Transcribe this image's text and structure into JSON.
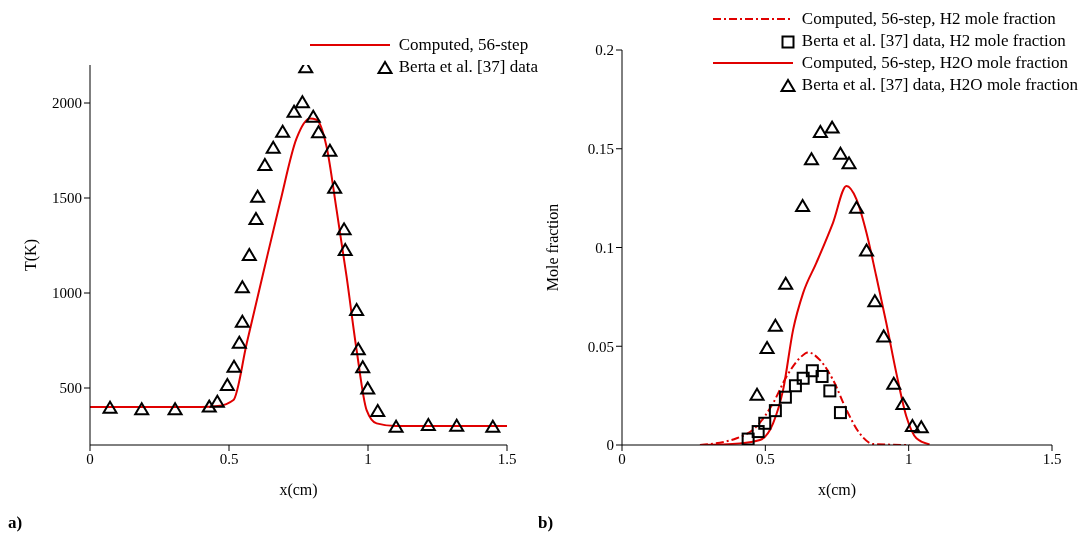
{
  "chart_data": [
    {
      "type": "line",
      "xlabel": "x(cm)",
      "ylabel": "T(K)",
      "xlim": [
        0,
        1.5
      ],
      "xticks": [
        0,
        0.5,
        1,
        1.5
      ],
      "ylim": [
        200,
        2200
      ],
      "yticks": [
        500,
        1000,
        1500,
        2000
      ],
      "grid": false,
      "legend": "top right",
      "annotations": [
        "a)"
      ],
      "series": [
        {
          "name": "Computed, 56-step",
          "color": "#e00000",
          "marker": "none",
          "line_style": "solid",
          "x": [
            0,
            0.2,
            0.4,
            0.46,
            0.516,
            0.564,
            0.623,
            0.683,
            0.743,
            0.791,
            0.815,
            0.851,
            0.887,
            0.923,
            0.959,
            0.995,
            1.031,
            1.1,
            1.3,
            1.5
          ],
          "values": [
            400,
            400,
            400,
            405,
            437,
            737,
            1104,
            1472,
            1814,
            1919,
            1912,
            1770,
            1437,
            1086,
            700,
            384,
            314,
            300,
            300,
            300
          ]
        },
        {
          "name": "Berta et al. [37] data",
          "type": "scatter",
          "color": "#000000",
          "marker": "triangle",
          "x": [
            0.072,
            0.186,
            0.306,
            0.429,
            0.458,
            0.494,
            0.518,
            0.537,
            0.548,
            0.548,
            0.573,
            0.597,
            0.603,
            0.629,
            0.659,
            0.693,
            0.734,
            0.764,
            0.776,
            0.803,
            0.822,
            0.863,
            0.88,
            0.914,
            0.918,
            0.959,
            0.965,
            0.981,
            0.999,
            1.035,
            1.101,
            1.217,
            1.319,
            1.449
          ],
          "values": [
            396,
            388,
            388,
            402,
            428,
            516,
            612,
            738,
            849,
            1030,
            1200,
            1389,
            1507,
            1674,
            1765,
            1849,
            1954,
            2004,
            2188,
            1928,
            1846,
            1749,
            1554,
            1335,
            1226,
            911,
            704,
            609,
            498,
            379,
            296,
            305,
            301,
            296
          ]
        }
      ]
    },
    {
      "type": "line",
      "xlabel": "x(cm)",
      "ylabel": "Mole fraction",
      "xlim": [
        0,
        1.5
      ],
      "xticks": [
        0,
        0.5,
        1,
        1.5
      ],
      "ylim": [
        0,
        0.2
      ],
      "yticks": [
        0,
        0.05,
        0.1,
        0.15,
        0.2
      ],
      "grid": false,
      "legend": "top right",
      "annotations": [
        "b)"
      ],
      "series": [
        {
          "name": "Computed, 56-step, H2 mole fraction",
          "color": "#e00000",
          "marker": "none",
          "line_style": "dashed",
          "x": [
            0.272,
            0.4,
            0.469,
            0.527,
            0.574,
            0.62,
            0.649,
            0.69,
            0.736,
            0.783,
            0.829,
            0.876,
            1.003
          ],
          "values": [
            0,
            0.0034,
            0.0093,
            0.0212,
            0.0347,
            0.044,
            0.0469,
            0.0431,
            0.033,
            0.0178,
            0.0059,
            0.0005,
            0
          ]
        },
        {
          "name": "Berta et al. [37] data, H2 mole fraction",
          "type": "scatter",
          "color": "#000000",
          "marker": "square",
          "x": [
            0.44,
            0.475,
            0.498,
            0.535,
            0.57,
            0.605,
            0.632,
            0.664,
            0.698,
            0.725,
            0.762
          ],
          "values": [
            0.003,
            0.0068,
            0.011,
            0.0174,
            0.0242,
            0.03,
            0.0338,
            0.0376,
            0.0347,
            0.0274,
            0.0164
          ]
        },
        {
          "name": "Computed, 56-step, H2O mole fraction",
          "color": "#e00000",
          "marker": "none",
          "line_style": "solid",
          "x": [
            0.272,
            0.411,
            0.481,
            0.527,
            0.562,
            0.597,
            0.632,
            0.678,
            0.736,
            0.783,
            0.818,
            0.853,
            0.887,
            0.922,
            0.957,
            0.992,
            1.027,
            1.073
          ],
          "values": [
            0,
            0.0008,
            0.0025,
            0.011,
            0.0279,
            0.0584,
            0.077,
            0.0922,
            0.1125,
            0.1311,
            0.1244,
            0.1074,
            0.0854,
            0.0618,
            0.0364,
            0.0144,
            0.0034,
            0.0003
          ]
        },
        {
          "name": "Berta et al. [37] data, H2O mole fraction",
          "type": "scatter",
          "color": "#000000",
          "marker": "triangle",
          "x": [
            0.471,
            0.506,
            0.535,
            0.571,
            0.63,
            0.661,
            0.692,
            0.733,
            0.762,
            0.792,
            0.818,
            0.853,
            0.882,
            0.913,
            0.948,
            0.98,
            1.013,
            1.044
          ],
          "values": [
            0.0254,
            0.0491,
            0.0604,
            0.0816,
            0.121,
            0.1447,
            0.1585,
            0.1607,
            0.1475,
            0.1426,
            0.1201,
            0.0985,
            0.0728,
            0.055,
            0.031,
            0.0208,
            0.0096,
            0.009
          ]
        }
      ]
    }
  ]
}
